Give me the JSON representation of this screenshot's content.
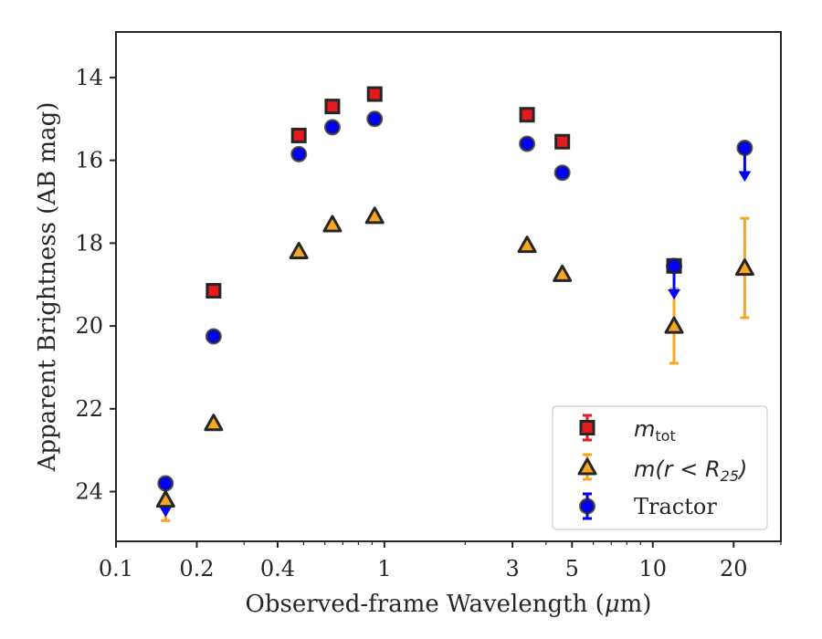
{
  "chart_data": {
    "type": "scatter",
    "xlabel_pre": "Observed-frame Wavelength (",
    "xlabel_mu": "μ",
    "xlabel_post": "m)",
    "ylabel": "Apparent Brightness (AB mag)",
    "xscale": "log",
    "xlim": [
      0.1,
      30
    ],
    "ylim": [
      25.2,
      12.9
    ],
    "y_inverted": true,
    "grid": false,
    "x_ticks": [
      {
        "value": 0.1,
        "label": "0.1"
      },
      {
        "value": 0.2,
        "label": "0.2"
      },
      {
        "value": 0.4,
        "label": "0.4"
      },
      {
        "value": 1,
        "label": "1"
      },
      {
        "value": 3,
        "label": "3"
      },
      {
        "value": 5,
        "label": "5"
      },
      {
        "value": 10,
        "label": "10"
      },
      {
        "value": 20,
        "label": "20"
      }
    ],
    "x_minor_ticks": [
      0.3,
      0.5,
      0.6,
      0.7,
      0.8,
      0.9,
      2,
      4,
      6,
      7,
      8,
      9,
      30
    ],
    "y_ticks": [
      {
        "value": 14,
        "label": "14"
      },
      {
        "value": 16,
        "label": "16"
      },
      {
        "value": 18,
        "label": "18"
      },
      {
        "value": 20,
        "label": "20"
      },
      {
        "value": 22,
        "label": "22"
      },
      {
        "value": 24,
        "label": "24"
      }
    ],
    "legend_position": "lower right",
    "series": [
      {
        "id": "mtot",
        "legend_label": "m_tot",
        "marker": "square",
        "color": "#e41a1c",
        "points": [
          {
            "x": 0.231,
            "y": 19.15
          },
          {
            "x": 0.48,
            "y": 15.4
          },
          {
            "x": 0.64,
            "y": 14.7
          },
          {
            "x": 0.92,
            "y": 14.4
          },
          {
            "x": 3.4,
            "y": 14.9
          },
          {
            "x": 4.6,
            "y": 15.55
          },
          {
            "x": 12.0,
            "y": 18.55
          }
        ]
      },
      {
        "id": "mr25",
        "legend_label": "m(r < R25)",
        "marker": "triangle",
        "color": "#f5a623",
        "points": [
          {
            "x": 0.153,
            "y": 24.2,
            "err": 0.5
          },
          {
            "x": 0.231,
            "y": 22.35
          },
          {
            "x": 0.48,
            "y": 18.2
          },
          {
            "x": 0.64,
            "y": 17.55
          },
          {
            "x": 0.92,
            "y": 17.35
          },
          {
            "x": 3.4,
            "y": 18.05
          },
          {
            "x": 4.6,
            "y": 18.75
          },
          {
            "x": 12.0,
            "y": 20.0,
            "err": 0.9
          },
          {
            "x": 22.0,
            "y": 18.6,
            "err": 1.2
          }
        ]
      },
      {
        "id": "tractor",
        "legend_label": "Tractor",
        "marker": "circle",
        "color": "#0000ff",
        "points": [
          {
            "x": 0.153,
            "y": 23.8,
            "upper_limit": true
          },
          {
            "x": 0.231,
            "y": 20.25
          },
          {
            "x": 0.48,
            "y": 15.85
          },
          {
            "x": 0.64,
            "y": 15.2
          },
          {
            "x": 0.92,
            "y": 15.0
          },
          {
            "x": 3.4,
            "y": 15.6
          },
          {
            "x": 4.6,
            "y": 16.3
          },
          {
            "x": 12.0,
            "y": 18.55,
            "upper_limit": true
          },
          {
            "x": 22.0,
            "y": 15.7,
            "upper_limit": true
          }
        ]
      }
    ]
  },
  "legend": {
    "mtot": {
      "base": "m",
      "sub": "tot"
    },
    "mr25": {
      "open": "m(r < R",
      "sub": "25",
      "close": ")"
    },
    "tractor": {
      "text": "Tractor"
    }
  }
}
